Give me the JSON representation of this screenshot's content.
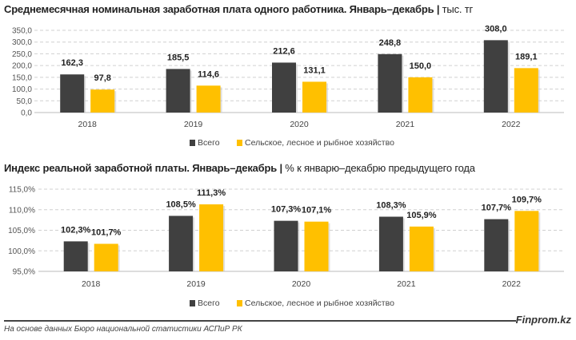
{
  "chart_data": [
    {
      "type": "bar",
      "title": "Среднемесячная номинальная заработная плата одного работника. Январь–декабрь",
      "unit": "тыс. тг",
      "categories": [
        "2018",
        "2019",
        "2020",
        "2021",
        "2022"
      ],
      "series": [
        {
          "name": "Всего",
          "color": "#404040",
          "values": [
            162.3,
            185.5,
            212.6,
            248.8,
            308.0
          ],
          "labels": [
            "162,3",
            "185,5",
            "212,6",
            "248,8",
            "308,0"
          ]
        },
        {
          "name": "Сельское, лесное и рыбное хозяйство",
          "color": "#FFC000",
          "values": [
            97.8,
            114.6,
            131.1,
            150.0,
            189.1
          ],
          "labels": [
            "97,8",
            "114,6",
            "131,1",
            "150,0",
            "189,1"
          ]
        }
      ],
      "ylim": [
        0,
        350
      ],
      "yticks": [
        0,
        50,
        100,
        150,
        200,
        250,
        300,
        350
      ],
      "ytick_labels": [
        "0,0",
        "50,0",
        "100,0",
        "150,0",
        "200,0",
        "250,0",
        "300,0",
        "350,0"
      ],
      "grid": true,
      "legend": "bottom"
    },
    {
      "type": "bar",
      "title": "Индекс реальной заработной платы. Январь–декабрь",
      "unit": "% к январю–декабрю предыдущего года",
      "categories": [
        "2018",
        "2019",
        "2020",
        "2021",
        "2022"
      ],
      "series": [
        {
          "name": "Всего",
          "color": "#404040",
          "values": [
            102.3,
            108.5,
            107.3,
            108.3,
            107.7
          ],
          "labels": [
            "102,3%",
            "108,5%",
            "107,3%",
            "108,3%",
            "107,7%"
          ]
        },
        {
          "name": "Сельское, лесное и рыбное хозяйство",
          "color": "#FFC000",
          "values": [
            101.7,
            111.3,
            107.1,
            105.9,
            109.7
          ],
          "labels": [
            "101,7%",
            "111,3%",
            "107,1%",
            "105,9%",
            "109,7%"
          ]
        }
      ],
      "ylim": [
        95,
        115
      ],
      "yticks": [
        95,
        100,
        105,
        110,
        115
      ],
      "ytick_labels": [
        "95,0%",
        "100,0%",
        "105,0%",
        "110,0%",
        "115,0%"
      ],
      "grid": true,
      "legend": "bottom"
    }
  ],
  "footer": {
    "brand": "Finprom.kz",
    "source": "На основе данных Бюро национальной статистики АСПиР РК"
  }
}
